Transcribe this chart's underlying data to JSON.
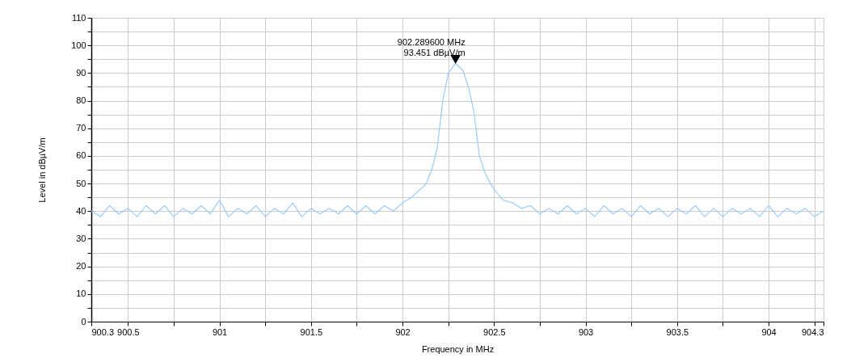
{
  "chart_data": {
    "type": "line",
    "xlabel": "Frequency in MHz",
    "ylabel": "Level in dBµV/m",
    "x": [
      900.3,
      900.35,
      900.4,
      900.45,
      900.5,
      900.55,
      900.6,
      900.65,
      900.7,
      900.75,
      900.8,
      900.85,
      900.9,
      900.95,
      901,
      901.05,
      901.1,
      901.15,
      901.2,
      901.25,
      901.3,
      901.35,
      901.4,
      901.45,
      901.5,
      901.55,
      901.6,
      901.65,
      901.7,
      901.75,
      901.8,
      901.85,
      901.9,
      901.95,
      902,
      902.05,
      902.08,
      902.1,
      902.13,
      902.16,
      902.19,
      902.22,
      902.25,
      902.2896,
      902.33,
      902.36,
      902.39,
      902.42,
      902.45,
      902.48,
      902.51,
      902.55,
      902.6,
      902.65,
      902.7,
      902.75,
      902.8,
      902.85,
      902.9,
      902.95,
      903,
      903.05,
      903.1,
      903.15,
      903.2,
      903.25,
      903.3,
      903.35,
      903.4,
      903.45,
      903.5,
      903.55,
      903.6,
      903.65,
      903.7,
      903.75,
      903.8,
      903.85,
      903.9,
      903.95,
      904,
      904.05,
      904.1,
      904.15,
      904.2,
      904.25,
      904.3
    ],
    "series": [
      {
        "color": "#99ccff",
        "values": [
          40,
          38,
          42,
          39,
          41,
          38,
          42,
          39,
          42,
          38,
          41,
          39,
          42,
          39,
          44,
          38,
          41,
          39,
          42,
          38,
          41,
          39,
          43,
          38,
          41,
          39,
          41,
          39,
          42,
          39,
          42,
          39,
          42,
          40,
          43,
          45,
          47,
          48,
          50,
          55,
          63,
          80,
          90,
          93.451,
          91,
          85,
          76,
          60,
          54,
          50,
          47,
          44,
          43,
          41,
          42,
          39,
          41,
          39,
          42,
          39,
          41,
          38,
          42,
          39,
          41,
          38,
          42,
          39,
          41,
          38,
          41,
          39,
          42,
          38,
          41,
          38,
          41,
          39,
          41,
          38,
          42,
          38,
          41,
          39,
          41,
          38,
          40
        ]
      }
    ],
    "xlim": [
      900.3,
      904.3
    ],
    "xticks": [
      900.3,
      900.5,
      {
        "value": 900.75,
        "label": null
      },
      901,
      {
        "value": 901.25,
        "label": null
      },
      901.5,
      {
        "value": 901.75,
        "label": null
      },
      902,
      {
        "value": 902.25,
        "label": null
      },
      902.5,
      {
        "value": 902.75,
        "label": null
      },
      903,
      {
        "value": 903.25,
        "label": null
      },
      903.5,
      {
        "value": 903.75,
        "label": null
      },
      904,
      {
        "value": 904.25,
        "label": null
      },
      904.3
    ],
    "ylim": [
      0,
      110
    ],
    "yticks": [
      0,
      {
        "value": 5,
        "label": null
      },
      10,
      {
        "value": 15,
        "label": null
      },
      20,
      {
        "value": 25,
        "label": null
      },
      30,
      {
        "value": 35,
        "label": null
      },
      40,
      {
        "value": 45,
        "label": null
      },
      50,
      {
        "value": 55,
        "label": null
      },
      60,
      {
        "value": 65,
        "label": null
      },
      70,
      {
        "value": 75,
        "label": null
      },
      80,
      {
        "value": 85,
        "label": null
      },
      90,
      {
        "value": 95,
        "label": null
      },
      100,
      {
        "value": 105,
        "label": null
      },
      110
    ],
    "grid": true,
    "marker": "none",
    "line_style": "solid",
    "annotations": [
      {
        "text": "902.289600 MHz\n93.451 dBµV/m",
        "x": 902.2896,
        "y": 93.451
      }
    ]
  }
}
